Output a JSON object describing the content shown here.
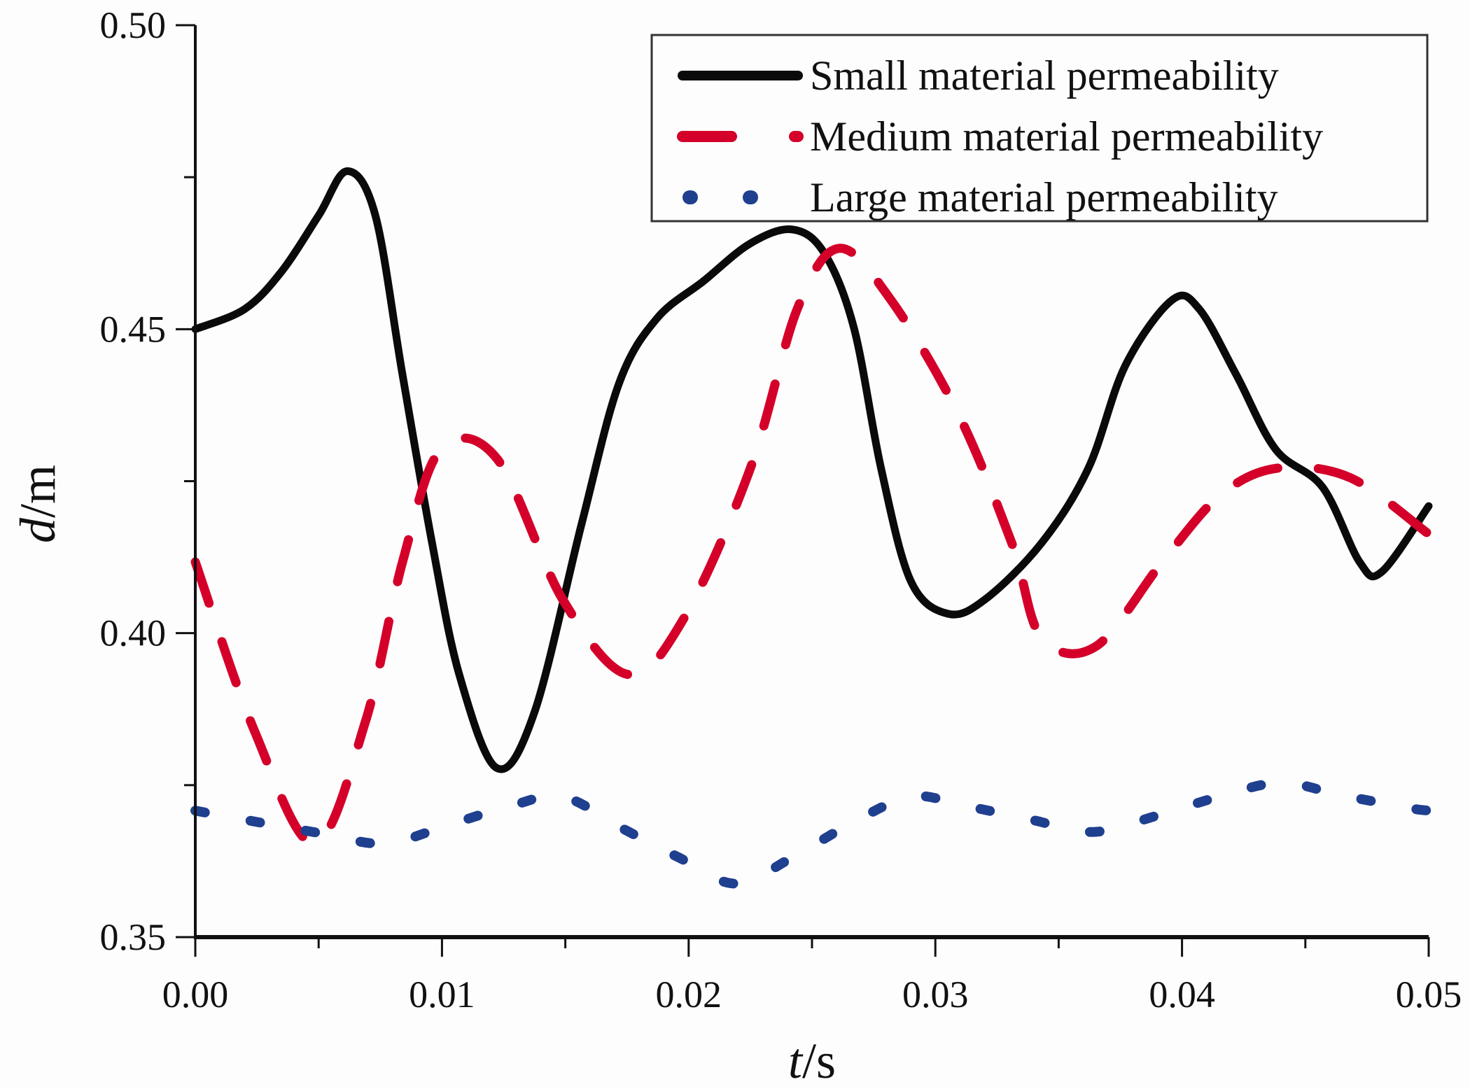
{
  "chart_data": {
    "type": "line",
    "title": "",
    "xlabel_italic": "t",
    "xlabel_unit": "/s",
    "ylabel_italic": "d",
    "ylabel_unit": "/m",
    "xlim": [
      0.0,
      0.05
    ],
    "ylim": [
      0.35,
      0.5
    ],
    "x_ticks": [
      0.0,
      0.01,
      0.02,
      0.03,
      0.04,
      0.05
    ],
    "x_tick_labels": [
      "0.00",
      "0.01",
      "0.02",
      "0.03",
      "0.04",
      "0.05"
    ],
    "y_ticks": [
      0.35,
      0.4,
      0.45,
      0.5
    ],
    "y_tick_labels": [
      "0.35",
      "0.40",
      "0.45",
      "0.50"
    ],
    "grid": false,
    "legend_position": "top-right",
    "series": [
      {
        "name": "Small material permeability",
        "color": "#0a0a0a",
        "style": "solid",
        "x": [
          0.0,
          0.002,
          0.0035,
          0.005,
          0.00616,
          0.0073,
          0.0084,
          0.0096,
          0.0107,
          0.01223,
          0.01375,
          0.01565,
          0.01717,
          0.0187,
          0.0206,
          0.0225,
          0.0242,
          0.0255,
          0.0267,
          0.0278,
          0.029,
          0.0305,
          0.032,
          0.0343,
          0.0362,
          0.0377,
          0.0396,
          0.0407,
          0.0422,
          0.0438,
          0.0457,
          0.0472,
          0.0481,
          0.05
        ],
        "y": [
          0.45,
          0.4533,
          0.4595,
          0.4687,
          0.476,
          0.4687,
          0.4425,
          0.4148,
          0.3932,
          0.3778,
          0.387,
          0.4178,
          0.441,
          0.4517,
          0.4579,
          0.4641,
          0.4664,
          0.4625,
          0.4502,
          0.4271,
          0.4086,
          0.4032,
          0.4055,
          0.4148,
          0.4271,
          0.444,
          0.4548,
          0.4533,
          0.4425,
          0.4302,
          0.424,
          0.4117,
          0.4101,
          0.4209
        ]
      },
      {
        "name": "Medium material permeability",
        "color": "#d4002a",
        "style": "dash",
        "x": [
          0.0,
          0.0024,
          0.00483,
          0.0069,
          0.0084,
          0.00995,
          0.01223,
          0.0149,
          0.01755,
          0.0198,
          0.0225,
          0.0244,
          0.0261,
          0.0282,
          0.0309,
          0.0331,
          0.0343,
          0.0365,
          0.0392,
          0.0415,
          0.0438,
          0.0468,
          0.05
        ],
        "y": [
          0.4117,
          0.3839,
          0.3654,
          0.3855,
          0.4117,
          0.4302,
          0.4287,
          0.4055,
          0.3932,
          0.4024,
          0.4271,
          0.4533,
          0.4633,
          0.4548,
          0.4363,
          0.4148,
          0.3993,
          0.3978,
          0.4117,
          0.4225,
          0.4271,
          0.4256,
          0.4163
        ]
      },
      {
        "name": "Large material permeability",
        "color": "#1f3f8f",
        "style": "dot",
        "x": [
          0.0,
          0.0027,
          0.0052,
          0.0077,
          0.0103,
          0.0128,
          0.0149,
          0.0174,
          0.0196,
          0.0219,
          0.0242,
          0.0265,
          0.029,
          0.0312,
          0.0339,
          0.0364,
          0.039,
          0.0415,
          0.044,
          0.0464,
          0.0491,
          0.05
        ],
        "y": [
          0.3708,
          0.3688,
          0.367,
          0.3654,
          0.3685,
          0.3716,
          0.3731,
          0.3677,
          0.3631,
          0.3588,
          0.3631,
          0.3685,
          0.3731,
          0.3716,
          0.3693,
          0.3673,
          0.37,
          0.3731,
          0.3754,
          0.3734,
          0.3713,
          0.3708
        ]
      }
    ]
  }
}
